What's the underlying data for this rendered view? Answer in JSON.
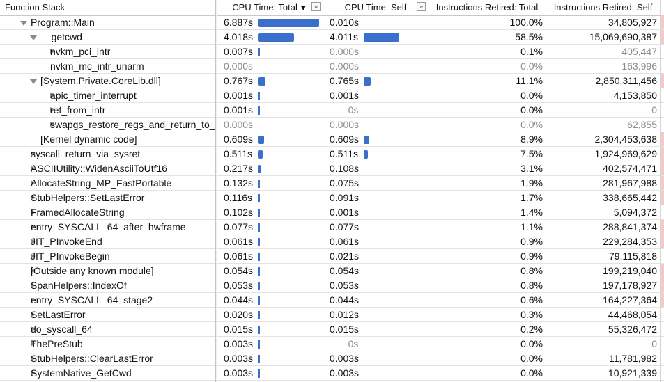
{
  "header": {
    "function_stack": "Function Stack",
    "cpu_time_total": "CPU Time: Total",
    "sort_indicator": "▼",
    "cpu_time_self": "CPU Time: Self",
    "instructions_total": "Instructions Retired: Total",
    "instructions_self": "Instructions Retired: Self",
    "expand_glyph": "»"
  },
  "colors": {
    "bar": "#3a70cc",
    "heat": "#f3c9c9",
    "dim_text": "#8c8c8c"
  },
  "rows": [
    {
      "name": "Program::Main",
      "level": 1,
      "expander": "down",
      "total": "6.887s",
      "total_val": 6.887,
      "self": "0.010s",
      "self_val": 0.01,
      "ir_total": "100.0%",
      "ir_self": "34,805,927",
      "heat": true
    },
    {
      "name": "__getcwd",
      "level": 2,
      "expander": "down",
      "total": "4.018s",
      "total_val": 4.018,
      "self": "4.011s",
      "self_val": 4.011,
      "ir_total": "58.5%",
      "ir_self": "15,069,690,387",
      "heat": true
    },
    {
      "name": "nvkm_pci_intr",
      "level": 3,
      "expander": "right",
      "total": "0.007s",
      "total_val": 0.007,
      "self": "0.000s",
      "self_val": 0,
      "self_gray": true,
      "ir_total": "0.1%",
      "ir_self": "405,447",
      "ir_self_gray": true
    },
    {
      "name": "nvkm_mc_intr_unarm",
      "level": 3,
      "expander": "none",
      "total": "0.000s",
      "total_val": 0,
      "total_gray": true,
      "self": "0.000s",
      "self_val": 0,
      "self_gray": true,
      "ir_total": "0.0%",
      "ir_total_gray": true,
      "ir_self": "163,996",
      "ir_self_gray": true
    },
    {
      "name": "[System.Private.CoreLib.dll]",
      "level": 2,
      "expander": "down",
      "total": "0.767s",
      "total_val": 0.767,
      "self": "0.765s",
      "self_val": 0.765,
      "ir_total": "11.1%",
      "ir_self": "2,850,311,456",
      "heat": true
    },
    {
      "name": "apic_timer_interrupt",
      "level": 3,
      "expander": "right",
      "total": "0.001s",
      "total_val": 0.001,
      "self": "0.001s",
      "self_val": 0.001,
      "ir_total": "0.0%",
      "ir_self": "4,153,850"
    },
    {
      "name": "ret_from_intr",
      "level": 3,
      "expander": "right",
      "total": "0.001s",
      "total_val": 0.001,
      "self": "0s",
      "self_val": 0,
      "self_gray": true,
      "self_centered": true,
      "ir_total": "0.0%",
      "ir_self": "0",
      "ir_self_gray": true
    },
    {
      "name": "swapgs_restore_regs_and_return_to_",
      "level": 3,
      "expander": "right",
      "total": "0.000s",
      "total_val": 0,
      "total_gray": true,
      "self": "0.000s",
      "self_val": 0,
      "self_gray": true,
      "ir_total": "0.0%",
      "ir_total_gray": true,
      "ir_self": "62,855",
      "ir_self_gray": true
    },
    {
      "name": "[Kernel dynamic code]",
      "level": 2,
      "expander": "none",
      "total": "0.609s",
      "total_val": 0.609,
      "self": "0.609s",
      "self_val": 0.609,
      "ir_total": "8.9%",
      "ir_self": "2,304,453,638",
      "heat": true
    },
    {
      "name": "syscall_return_via_sysret",
      "level": 1,
      "expander": "right",
      "total": "0.511s",
      "total_val": 0.511,
      "self": "0.511s",
      "self_val": 0.511,
      "ir_total": "7.5%",
      "ir_self": "1,924,969,629",
      "heat": true
    },
    {
      "name": "ASCIIUtility::WidenAsciiToUtf16",
      "level": 1,
      "expander": "right",
      "total": "0.217s",
      "total_val": 0.217,
      "self": "0.108s",
      "self_val": 0.108,
      "ir_total": "3.1%",
      "ir_self": "402,574,471",
      "heat": true
    },
    {
      "name": "AllocateString_MP_FastPortable",
      "level": 1,
      "expander": "right",
      "total": "0.132s",
      "total_val": 0.132,
      "self": "0.075s",
      "self_val": 0.075,
      "ir_total": "1.9%",
      "ir_self": "281,967,988",
      "heat": true
    },
    {
      "name": "StubHelpers::SetLastError",
      "level": 1,
      "expander": "right",
      "total": "0.116s",
      "total_val": 0.116,
      "self": "0.091s",
      "self_val": 0.091,
      "ir_total": "1.7%",
      "ir_self": "338,665,442",
      "heat": true
    },
    {
      "name": "FramedAllocateString",
      "level": 1,
      "expander": "right",
      "total": "0.102s",
      "total_val": 0.102,
      "self": "0.001s",
      "self_val": 0.001,
      "ir_total": "1.4%",
      "ir_self": "5,094,372"
    },
    {
      "name": "entry_SYSCALL_64_after_hwframe",
      "level": 1,
      "expander": "right",
      "total": "0.077s",
      "total_val": 0.077,
      "self": "0.077s",
      "self_val": 0.077,
      "ir_total": "1.1%",
      "ir_self": "288,841,374",
      "heat": true
    },
    {
      "name": "JIT_PInvokeEnd",
      "level": 1,
      "expander": "right",
      "total": "0.061s",
      "total_val": 0.061,
      "self": "0.061s",
      "self_val": 0.061,
      "ir_total": "0.9%",
      "ir_self": "229,284,353",
      "heat": true
    },
    {
      "name": "JIT_PInvokeBegin",
      "level": 1,
      "expander": "right",
      "total": "0.061s",
      "total_val": 0.061,
      "self": "0.021s",
      "self_val": 0.021,
      "ir_total": "0.9%",
      "ir_self": "79,115,818"
    },
    {
      "name": "[Outside any known module]",
      "level": 1,
      "expander": "right",
      "total": "0.054s",
      "total_val": 0.054,
      "self": "0.054s",
      "self_val": 0.054,
      "ir_total": "0.8%",
      "ir_self": "199,219,040",
      "heat": true
    },
    {
      "name": "SpanHelpers::IndexOf",
      "level": 1,
      "expander": "right",
      "total": "0.053s",
      "total_val": 0.053,
      "self": "0.053s",
      "self_val": 0.053,
      "ir_total": "0.8%",
      "ir_self": "197,178,927",
      "heat": true
    },
    {
      "name": "entry_SYSCALL_64_stage2",
      "level": 1,
      "expander": "right",
      "total": "0.044s",
      "total_val": 0.044,
      "self": "0.044s",
      "self_val": 0.044,
      "ir_total": "0.6%",
      "ir_self": "164,227,364",
      "heat": true
    },
    {
      "name": "SetLastError",
      "level": 1,
      "expander": "right",
      "total": "0.020s",
      "total_val": 0.02,
      "self": "0.012s",
      "self_val": 0.012,
      "ir_total": "0.3%",
      "ir_self": "44,468,054"
    },
    {
      "name": "do_syscall_64",
      "level": 1,
      "expander": "right",
      "total": "0.015s",
      "total_val": 0.015,
      "self": "0.015s",
      "self_val": 0.015,
      "ir_total": "0.2%",
      "ir_self": "55,326,472"
    },
    {
      "name": "ThePreStub",
      "level": 1,
      "expander": "right",
      "total": "0.003s",
      "total_val": 0.003,
      "self": "0s",
      "self_val": 0,
      "self_gray": true,
      "self_centered": true,
      "ir_total": "0.0%",
      "ir_self": "0",
      "ir_self_gray": true
    },
    {
      "name": "StubHelpers::ClearLastError",
      "level": 1,
      "expander": "right",
      "total": "0.003s",
      "total_val": 0.003,
      "self": "0.003s",
      "self_val": 0.003,
      "ir_total": "0.0%",
      "ir_self": "11,781,982"
    },
    {
      "name": "SystemNative_GetCwd",
      "level": 1,
      "expander": "right",
      "total": "0.003s",
      "total_val": 0.003,
      "self": "0.003s",
      "self_val": 0.003,
      "ir_total": "0.0%",
      "ir_self": "10,921,339"
    }
  ]
}
